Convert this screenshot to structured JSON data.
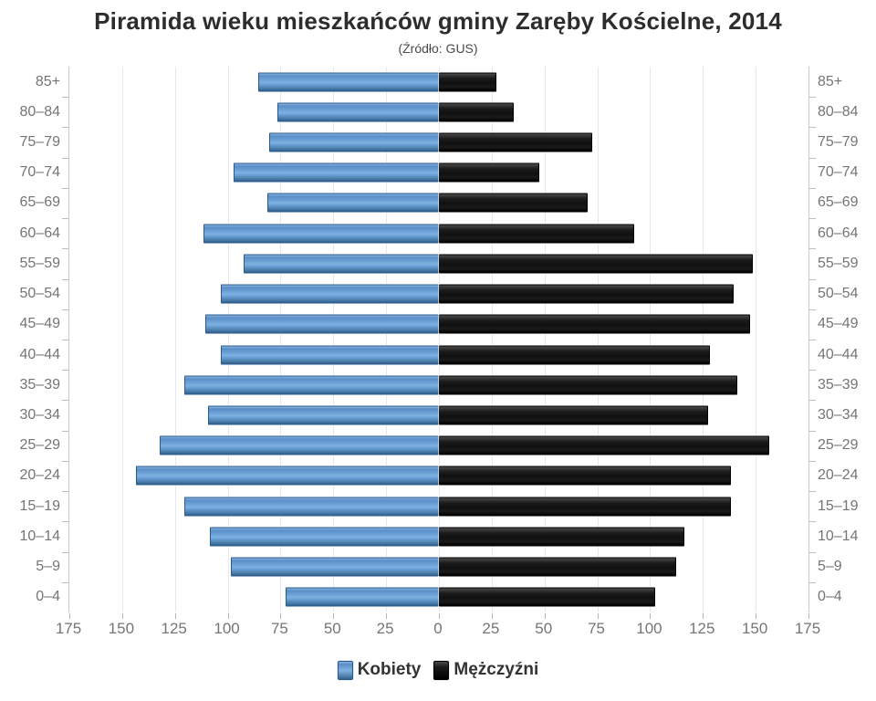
{
  "header": {
    "title": "Piramida wieku mieszkańców gminy Zaręby Kościelne, 2014",
    "subtitle": "(Źródło: GUS)"
  },
  "chart_data": {
    "type": "bar",
    "variant": "population-pyramid",
    "title": "Piramida wieku mieszkańców gminy Zaręby Kościelne, 2014",
    "subtitle": "(Źródło: GUS)",
    "categories": [
      "85+",
      "80–84",
      "75–79",
      "70–74",
      "65–69",
      "60–64",
      "55–59",
      "50–54",
      "45–49",
      "40–44",
      "35–39",
      "30–34",
      "25–29",
      "20–24",
      "15–19",
      "10–14",
      "5–9",
      "0–4"
    ],
    "series": [
      {
        "name": "Kobiety",
        "side": "left",
        "color": "#5b8fc9",
        "values": [
          85,
          76,
          80,
          97,
          81,
          111,
          92,
          103,
          110,
          103,
          120,
          109,
          132,
          143,
          120,
          108,
          98,
          72
        ]
      },
      {
        "name": "Mężczyźni",
        "side": "right",
        "color": "#111111",
        "values": [
          27,
          35,
          72,
          47,
          70,
          92,
          148,
          139,
          147,
          128,
          141,
          127,
          156,
          138,
          138,
          116,
          112,
          102
        ]
      }
    ],
    "axis_max": 175,
    "tick_step": 25,
    "x_tick_labels": [
      "175",
      "150",
      "125",
      "100",
      "75",
      "50",
      "25",
      "0",
      "25",
      "50",
      "75",
      "100",
      "125",
      "150",
      "175"
    ],
    "grid": true,
    "legend_position": "bottom"
  },
  "legend": {
    "items": [
      {
        "label": "Kobiety",
        "color": "#5b8fc9"
      },
      {
        "label": "Mężczyźni",
        "color": "#111111"
      }
    ]
  },
  "colors": {
    "female_bar": "#5b8fc9",
    "male_bar": "#111111",
    "gridline": "#e7e7ee",
    "axis_border": "#c9c9cf",
    "axis_text": "#757575",
    "title_text": "#2d2d2d",
    "background": "#ffffff"
  }
}
